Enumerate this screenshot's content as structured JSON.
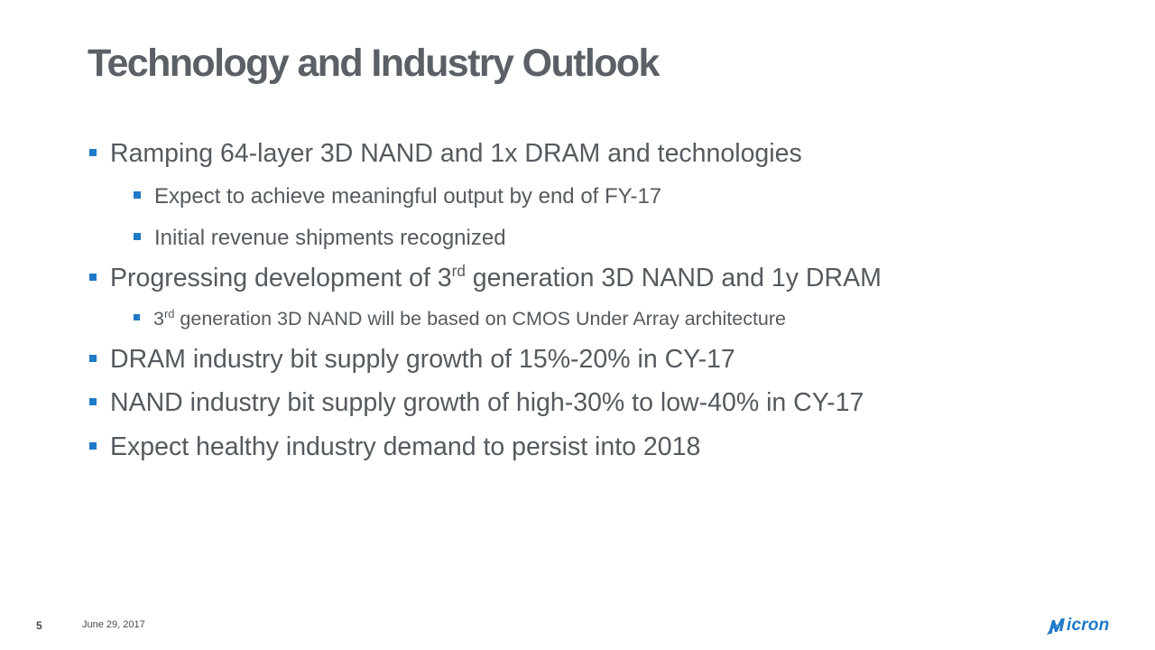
{
  "title": "Technology and Industry Outlook",
  "bullets": {
    "b1": "Ramping 64-layer 3D NAND and 1x DRAM and technologies",
    "b1_1": "Expect to achieve meaningful output by end of FY-17",
    "b1_2": "Initial revenue shipments recognized",
    "b2_pre": "Progressing development of 3",
    "b2_sup": "rd",
    "b2_post": " generation 3D NAND and 1y DRAM",
    "b2_1_pre": "3",
    "b2_1_sup": "rd",
    "b2_1_post": " generation 3D NAND will be based on CMOS Under Array architecture",
    "b3": "DRAM industry bit supply growth of 15%-20% in CY-17",
    "b4": "NAND industry bit supply growth of high-30% to low-40% in CY-17",
    "b5": "Expect healthy industry demand to persist into 2018"
  },
  "footer": {
    "page_number": "5",
    "date": "June 29, 2017",
    "logo_text": "icron"
  },
  "colors": {
    "accent": "#1f7ac8",
    "title": "#5b6066",
    "body_text": "#555a5f"
  }
}
